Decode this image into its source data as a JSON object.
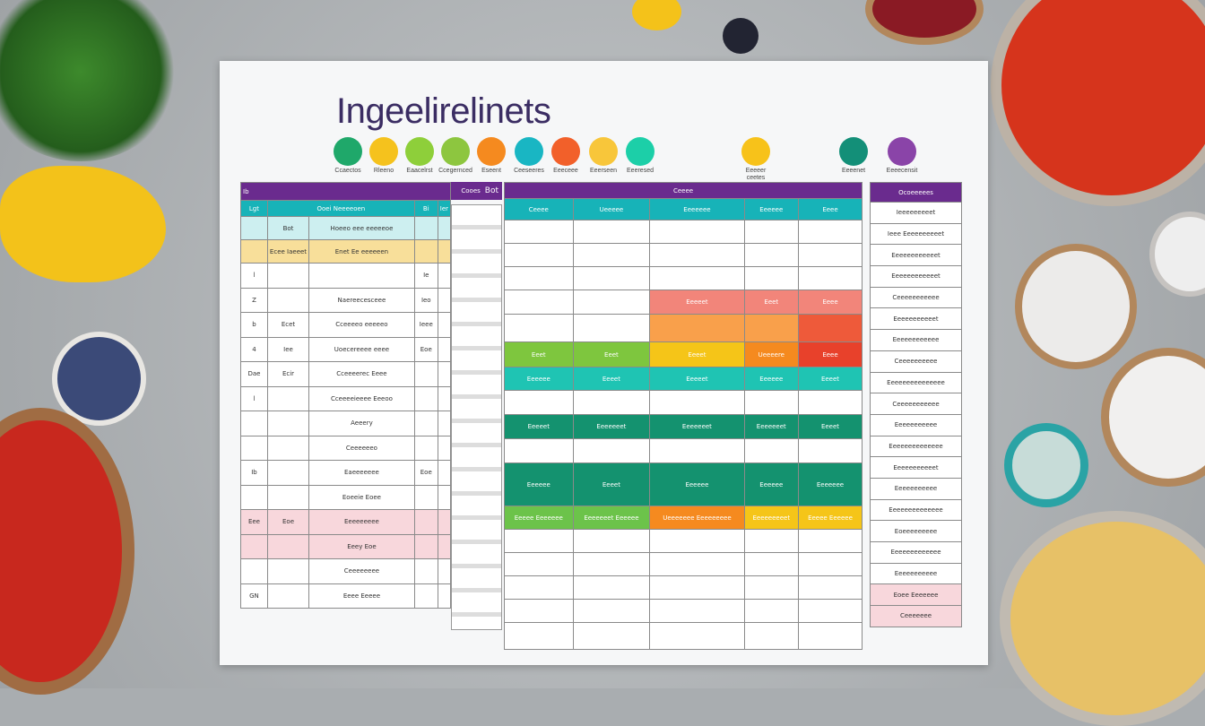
{
  "title": "Ingeelirelinets",
  "legend": [
    {
      "label": "Ccaectos",
      "color": "#1fa86a"
    },
    {
      "label": "Rleeno",
      "color": "#f5c21d"
    },
    {
      "label": "Eaacelrst",
      "color": "#8ecf3a"
    },
    {
      "label": "Ccegernced",
      "color": "#8dc63f"
    },
    {
      "label": "Eseent",
      "color": "#f58a1f"
    },
    {
      "label": "Ceeseeres",
      "color": "#19b6c3"
    },
    {
      "label": "Eeeceee",
      "color": "#f2602a"
    },
    {
      "label": "Eeerseen",
      "color": "#f8c63a"
    },
    {
      "label": "Eeeresed",
      "color": "#1ccfa8"
    },
    {
      "label": "Eeeeer ceetes",
      "color": "#f7c21a"
    },
    {
      "label": "Eeeenet",
      "color": "#138f78"
    },
    {
      "label": "Eeeecensit",
      "color": "#8a44a8"
    }
  ],
  "left_table": {
    "header": [
      "Ib",
      "Cooes",
      "Bot"
    ],
    "subheader": [
      "Lgt",
      "Ooei Neeeeoen",
      "Bi",
      "Ier"
    ],
    "rows": [
      [
        "",
        "Bot",
        "Hoeeo eee eeeeeoe",
        ""
      ],
      [
        "",
        "Ecee Iaeeet",
        "Enet Ee eeeeeen",
        ""
      ],
      [
        "l",
        "",
        "",
        "Ie"
      ],
      [
        "Z",
        "",
        "Naereecesceee",
        "Ieo"
      ],
      [
        "b",
        "Ecet",
        "Cceeeeo eeeeeo",
        "Ieee"
      ],
      [
        "4",
        "Iee",
        "Uoecereeee eeee",
        "Eoe"
      ],
      [
        "Dae",
        "Ecir",
        "Cceeeerec Eeee",
        ""
      ],
      [
        "l",
        "",
        "Cceeeeieeee Eeeoo",
        ""
      ],
      [
        "",
        "",
        "Aeeery",
        ""
      ],
      [
        "",
        "",
        "Ceeeeeeo",
        ""
      ],
      [
        "Ib",
        "",
        "Eaeeeeeee",
        "Eoe"
      ],
      [
        "",
        "",
        "Eoeeie Eoee",
        ""
      ],
      [
        "Eee",
        "Eoe",
        "Eeeeeeeee",
        ""
      ],
      [
        "",
        "",
        "Eeey Eoe",
        ""
      ],
      [
        "",
        "",
        "Ceeeeeeee",
        ""
      ],
      [
        "GN",
        "",
        "Eeee Eeeee",
        ""
      ]
    ]
  },
  "middle_table": {
    "header": [
      "Ceeee"
    ],
    "columns": [
      "Ceeee",
      "Ueeeee",
      "Eeeeeee",
      "Eeeeee",
      "Eeee"
    ],
    "cells": {
      "r3": [
        "",
        "",
        "Eeeeet",
        "Eeet",
        "Eeee"
      ],
      "r5": [
        "Eeet",
        "Eeet",
        "Eeeet",
        "Ueeeere",
        "Eeee"
      ],
      "r6": [
        "Eeeeee",
        "Eeeet",
        "Eeeeet",
        "Eeeeee",
        "Eeeet"
      ],
      "r8": [
        "Eeeeet",
        "Eeeeeeet",
        "Eeeeeeet",
        "Eeeeeeet",
        "Eeeet"
      ],
      "r10": [
        "Eeeeee",
        "Eeeet",
        "Eeeeee",
        "Eeeeee",
        "Eeeeeee"
      ],
      "r11": [
        "Eeeee Eeeeeee",
        "Eeeeeeet Eeeeee",
        "Ueeeeeee Eeeeeeeee",
        "Eeeeeeeeet",
        "Eeeee Eeeeee"
      ]
    }
  },
  "right_table": {
    "header": "Ocoeeeees",
    "rows": [
      "Ieeeeeeeeet",
      "Ieee Eeeeeeeeeet",
      "Eeeeeeeeeeeet",
      "Eeeeeeeeeeeet",
      "Ceeeeeeeeeee",
      "Eeeeeeeeeeet",
      "Eeeeeeeeeeee",
      "Ceeeeeeeeee",
      "Eeeeeeeeeeeeeee",
      "Ceeeeeeeeeee",
      "Eeeeeeeeeee",
      "Eeeeeeeeeeeeee",
      "Eeeeeeeeeeet",
      "Eeeeeeeeeee",
      "Eeeeeeeeeeeeee",
      "Eoeeeeeeeee",
      "Eeeeeeeeeeeee",
      "Eeeeeeeeeee",
      "Eoee Eeeeeee",
      "Ceeeeeee"
    ]
  }
}
